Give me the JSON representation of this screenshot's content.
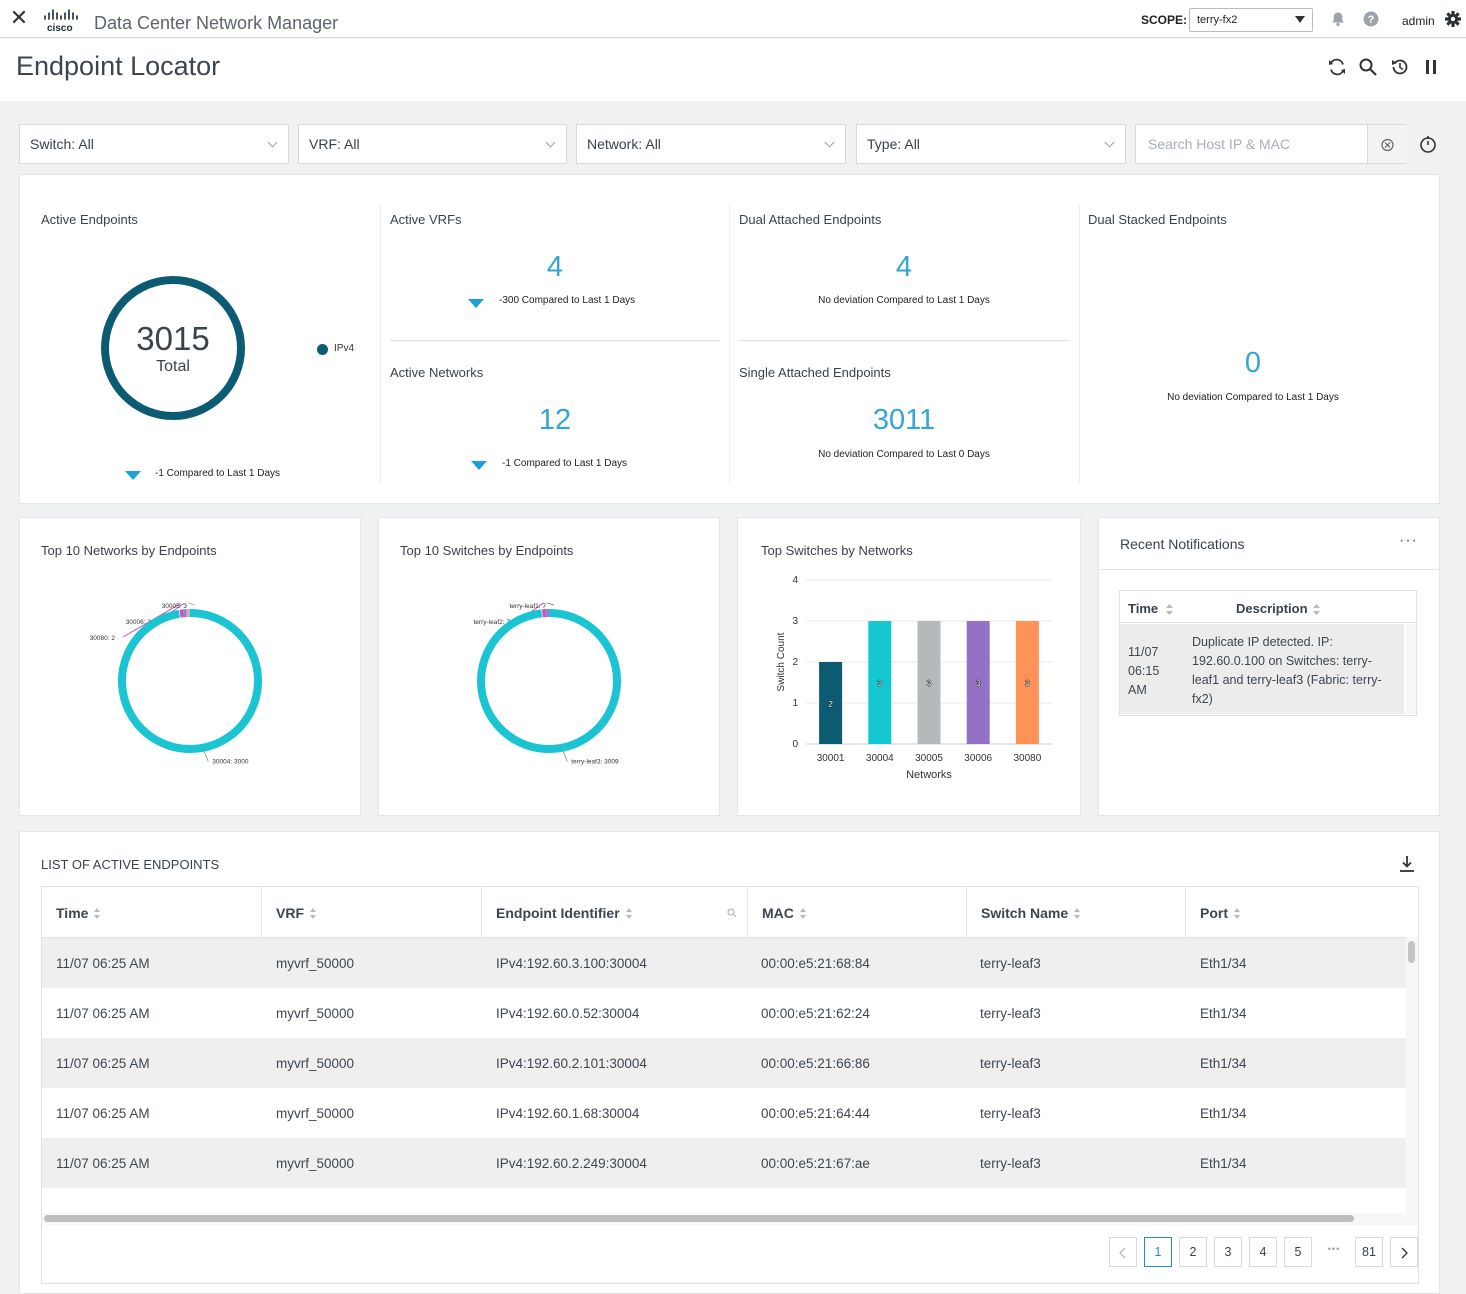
{
  "topbar": {
    "app_title": "Data Center Network Manager",
    "scope_label": "SCOPE:",
    "scope_value": "terry-fx2",
    "user": "admin",
    "logo_text": "cisco"
  },
  "page": {
    "title": "Endpoint Locator"
  },
  "filters": {
    "switch": "Switch: All",
    "vrf": "VRF: All",
    "network": "Network: All",
    "type": "Type: All",
    "search_placeholder": "Search Host IP & MAC"
  },
  "stats": {
    "active_endpoints": {
      "title": "Active Endpoints",
      "total": "3015",
      "total_label": "Total",
      "legend": "IPv4",
      "compare": "-1 Compared to Last 1 Days"
    },
    "active_vrfs": {
      "title": "Active VRFs",
      "value": "4",
      "compare": "-300 Compared to Last 1 Days"
    },
    "active_networks": {
      "title": "Active Networks",
      "value": "12",
      "compare": "-1 Compared to Last 1 Days"
    },
    "dual_attached": {
      "title": "Dual Attached Endpoints",
      "value": "4",
      "compare": "No deviation Compared to Last 1 Days"
    },
    "single_attached": {
      "title": "Single Attached Endpoints",
      "value": "3011",
      "compare": "No deviation Compared to Last 0 Days"
    },
    "dual_stacked": {
      "title": "Dual Stacked Endpoints",
      "value": "0",
      "compare": "No deviation Compared to Last 1 Days"
    }
  },
  "widgets": {
    "top_networks": {
      "title": "Top 10 Networks by Endpoints",
      "slices": [
        {
          "label": "30080: 2",
          "value": 2,
          "color": "#d64fb1"
        },
        {
          "label": "30006: 2",
          "value": 2,
          "color": "#9c7ad6"
        },
        {
          "label": "30005: 3",
          "value": 3,
          "color": "#b9b9b9"
        },
        {
          "label": "30004: 3000",
          "value": 3000,
          "color": "#1bc4d3"
        }
      ]
    },
    "top_switches": {
      "title": "Top 10 Switches by Endpoints",
      "slices": [
        {
          "label": "terry-leaf2: 7",
          "value": 7,
          "color": "#d64fb1"
        },
        {
          "label": "terry-leaf1: 7",
          "value": 7,
          "color": "#9c7ad6"
        },
        {
          "label": "terry-leaf3: 3009",
          "value": 3009,
          "color": "#1bc4d3"
        }
      ]
    },
    "top_switches_by_networks": {
      "title": "Top Switches by Networks"
    },
    "notifications": {
      "title": "Recent Notifications",
      "col_time": "Time",
      "col_desc": "Description",
      "rows": [
        {
          "time": "11/07 06:15 AM",
          "description": "Duplicate IP detected. IP: 192.60.0.100 on Switches: terry-leaf1 and terry-leaf3 (Fabric: terry-fx2)"
        }
      ]
    }
  },
  "chart_data": {
    "type": "bar",
    "title": "Top Switches by Networks",
    "categories": [
      "30001",
      "30004",
      "30005",
      "30006",
      "30080"
    ],
    "values": [
      2,
      3,
      3,
      3,
      3
    ],
    "colors": [
      "#0d5a73",
      "#14c8d2",
      "#b5b9bb",
      "#9371c5",
      "#fe9258"
    ],
    "xlabel": "Networks",
    "ylabel": "Switch Count",
    "ylim": [
      0,
      4
    ],
    "yticks": [
      "0",
      "1",
      "2",
      "3",
      "4"
    ],
    "grid": true
  },
  "endpoints": {
    "title": "LIST OF ACTIVE ENDPOINTS",
    "columns": [
      "Time",
      "VRF",
      "Endpoint Identifier",
      "MAC",
      "Switch Name",
      "Port"
    ],
    "rows": [
      [
        "11/07 06:25 AM",
        "myvrf_50000",
        "IPv4:192.60.3.100:30004",
        "00:00:e5:21:68:84",
        "terry-leaf3",
        "Eth1/34"
      ],
      [
        "11/07 06:25 AM",
        "myvrf_50000",
        "IPv4:192.60.0.52:30004",
        "00:00:e5:21:62:24",
        "terry-leaf3",
        "Eth1/34"
      ],
      [
        "11/07 06:25 AM",
        "myvrf_50000",
        "IPv4:192.60.2.101:30004",
        "00:00:e5:21:66:86",
        "terry-leaf3",
        "Eth1/34"
      ],
      [
        "11/07 06:25 AM",
        "myvrf_50000",
        "IPv4:192.60.1.68:30004",
        "00:00:e5:21:64:44",
        "terry-leaf3",
        "Eth1/34"
      ],
      [
        "11/07 06:25 AM",
        "myvrf_50000",
        "IPv4:192.60.2.249:30004",
        "00:00:e5:21:67:ae",
        "terry-leaf3",
        "Eth1/34"
      ]
    ]
  },
  "pagination": {
    "pages": [
      "1",
      "2",
      "3",
      "4",
      "5"
    ],
    "ellipsis": "•••",
    "last": "81",
    "current": "1"
  },
  "icons": [
    "close-icon",
    "cisco-logo",
    "caret-down-icon",
    "bell-icon",
    "help-icon",
    "settings-icon",
    "refresh-icon",
    "search-icon",
    "history-icon",
    "pause-icon",
    "chevron-down-icon",
    "clear-icon",
    "timer-icon",
    "more-icon",
    "sort-icon",
    "filter-search-icon",
    "download-icon",
    "chevron-left-icon",
    "chevron-right-icon"
  ],
  "colors": {
    "accent": "#35a6d4",
    "donut": "#0d5a73",
    "trend": "#1ba0d7"
  }
}
